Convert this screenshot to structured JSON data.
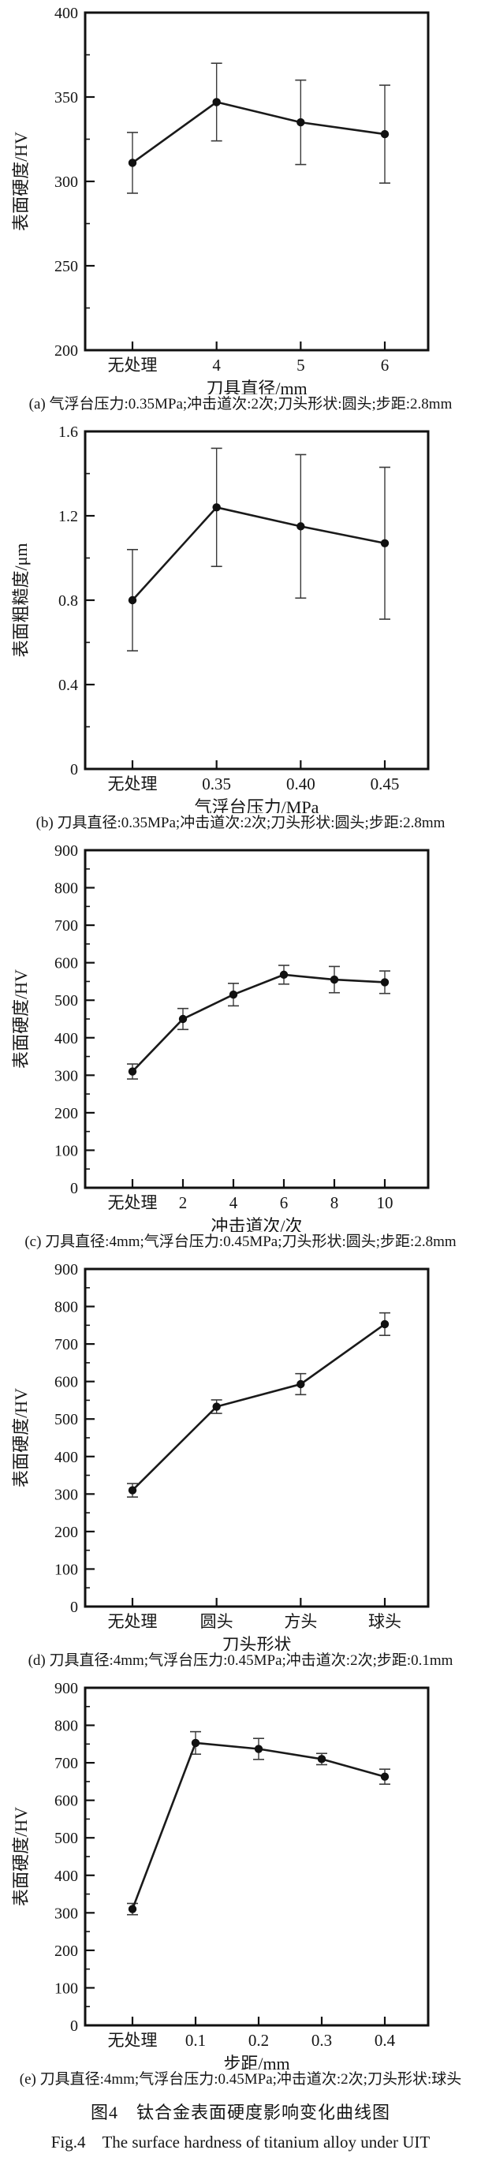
{
  "figure": {
    "title_zh": "图4　钛合金表面硬度影响变化曲线图",
    "title_en": "Fig.4　The surface hardness of titanium alloy under UIT"
  },
  "chart_data": [
    {
      "id": "a",
      "type": "line",
      "categories": [
        "无处理",
        "4",
        "5",
        "6"
      ],
      "values": [
        311,
        347,
        335,
        328
      ],
      "errors": [
        18,
        23,
        25,
        29
      ],
      "xlabel": "刀具直径/mm",
      "ylabel": "表面硬度/HV",
      "ylim": [
        200,
        400
      ],
      "ytick_step": 50,
      "yminor_step": 25,
      "grid": false,
      "legend": "none",
      "caption": "(a) 气浮台压力:0.35MPa;冲击道次:2次;刀头形状:圆头;步距:2.8mm"
    },
    {
      "id": "b",
      "type": "line",
      "categories": [
        "无处理",
        "0.35",
        "0.40",
        "0.45"
      ],
      "values": [
        0.8,
        1.24,
        1.15,
        1.07
      ],
      "errors": [
        0.24,
        0.28,
        0.34,
        0.36
      ],
      "xlabel": "气浮台压力/MPa",
      "ylabel": "表面粗糙度/μm",
      "ylim": [
        0,
        1.6
      ],
      "ytick_step": 0.4,
      "yminor_step": 0.2,
      "grid": false,
      "legend": "none",
      "caption": "(b) 刀具直径:0.35MPa;冲击道次:2次;刀头形状:圆头;步距:2.8mm"
    },
    {
      "id": "c",
      "type": "line",
      "categories": [
        "无处理",
        "2",
        "4",
        "6",
        "8",
        "10"
      ],
      "values": [
        310,
        450,
        515,
        568,
        555,
        548
      ],
      "errors": [
        20,
        28,
        30,
        25,
        35,
        30
      ],
      "xlabel": "冲击道次/次",
      "ylabel": "表面硬度/HV",
      "ylim": [
        0,
        900
      ],
      "ytick_step": 100,
      "yminor_step": 50,
      "grid": false,
      "legend": "none",
      "caption": "(c) 刀具直径:4mm;气浮台压力:0.45MPa;刀头形状:圆头;步距:2.8mm"
    },
    {
      "id": "d",
      "type": "line",
      "categories": [
        "无处理",
        "圆头",
        "方头",
        "球头"
      ],
      "values": [
        310,
        533,
        593,
        753
      ],
      "errors": [
        18,
        18,
        28,
        30
      ],
      "xlabel": "刀头形状",
      "ylabel": "表面硬度/HV",
      "ylim": [
        0,
        900
      ],
      "ytick_step": 100,
      "yminor_step": 50,
      "grid": false,
      "legend": "none",
      "caption": "(d) 刀具直径:4mm;气浮台压力:0.45MPa;冲击道次:2次;步距:0.1mm"
    },
    {
      "id": "e",
      "type": "line",
      "categories": [
        "无处理",
        "0.1",
        "0.2",
        "0.3",
        "0.4"
      ],
      "values": [
        310,
        753,
        737,
        710,
        663
      ],
      "errors": [
        15,
        30,
        28,
        15,
        20
      ],
      "xlabel": "步距/mm",
      "ylabel": "表面硬度/HV",
      "ylim": [
        0,
        900
      ],
      "ytick_step": 100,
      "yminor_step": 50,
      "grid": false,
      "legend": "none",
      "caption": "(e) 刀具直径:4mm;气浮台压力:0.45MPa;冲击道次:2次;刀头形状:球头"
    }
  ],
  "style": {
    "line_color": "#1a1a1a",
    "marker_color": "#111111",
    "error_color": "#3a3a3a",
    "axis_color": "#111111",
    "background": "#ffffff"
  }
}
